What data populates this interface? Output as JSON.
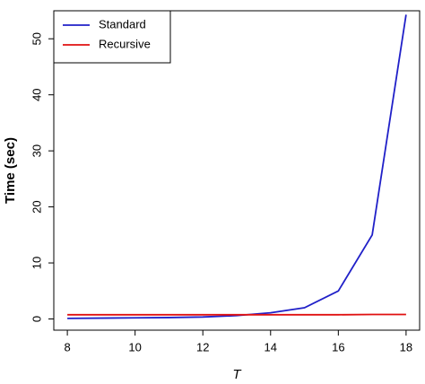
{
  "chart_data": {
    "type": "line",
    "x_label": "T",
    "y_label": "Time (sec)",
    "x": [
      8,
      9,
      10,
      11,
      12,
      13,
      14,
      15,
      16,
      17,
      18
    ],
    "series": [
      {
        "name": "Standard",
        "color": "#2020c8",
        "values": [
          0.1,
          0.15,
          0.2,
          0.25,
          0.35,
          0.6,
          1.1,
          2.0,
          5.0,
          15.0,
          54.3
        ]
      },
      {
        "name": "Recursive",
        "color": "#e01010",
        "values": [
          0.75,
          0.75,
          0.75,
          0.75,
          0.75,
          0.75,
          0.75,
          0.75,
          0.75,
          0.8,
          0.8
        ]
      }
    ],
    "xlim": [
      7.6,
      18.4
    ],
    "xticks": [
      8,
      10,
      12,
      14,
      16,
      18
    ],
    "ylim": [
      -2,
      55
    ],
    "yticks": [
      0,
      10,
      20,
      30,
      40,
      50
    ],
    "legend": "topleft",
    "grid": false
  }
}
